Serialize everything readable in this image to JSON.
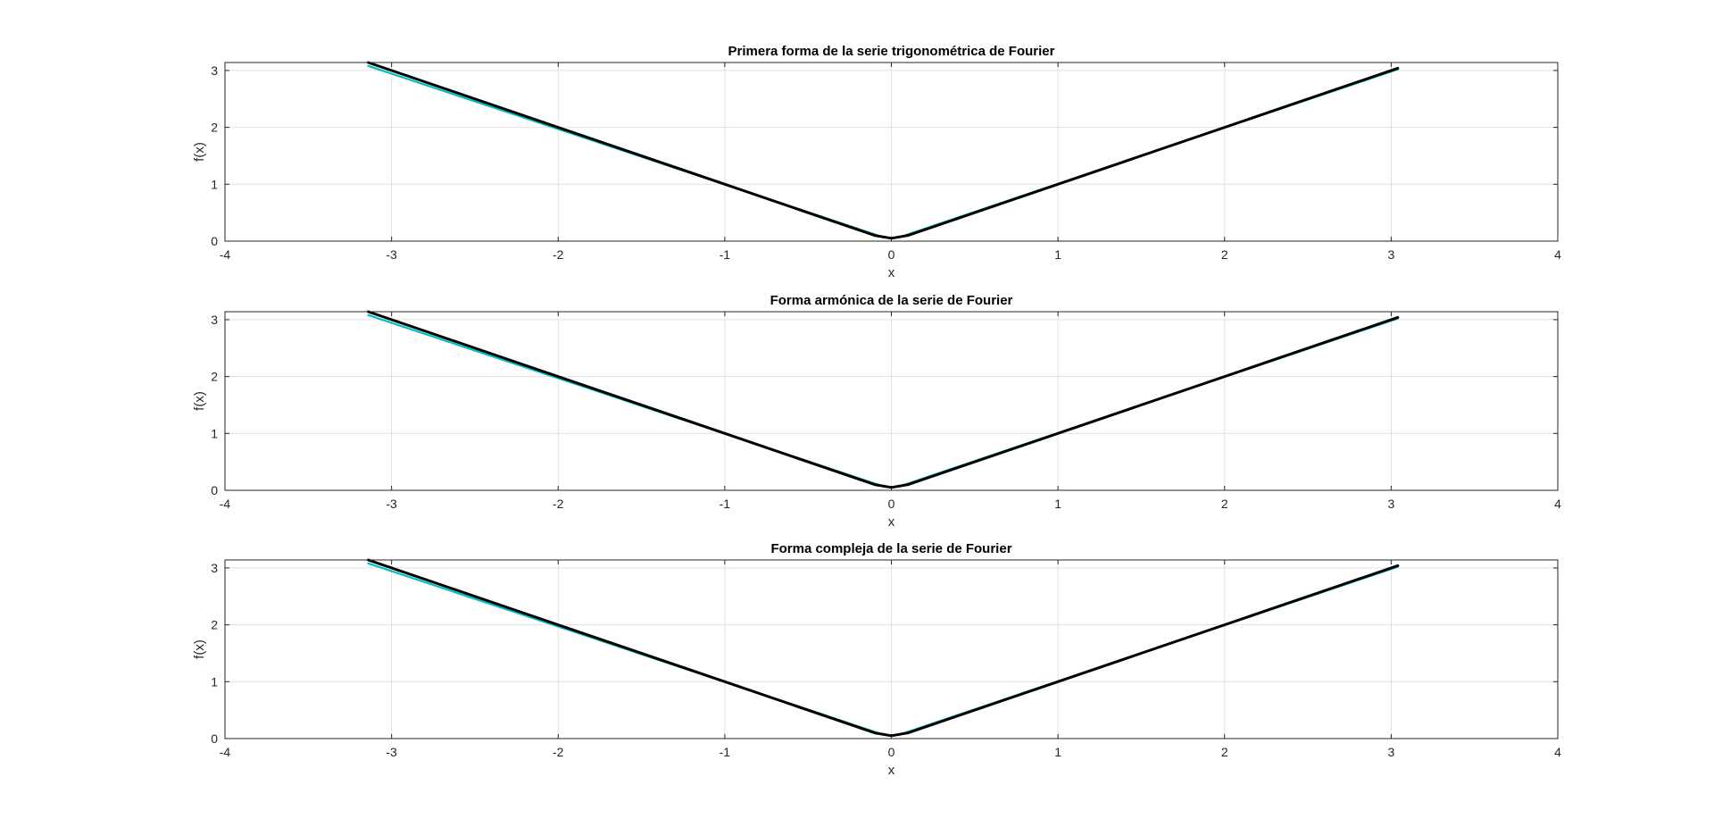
{
  "chart_data": [
    {
      "type": "line",
      "title": "Primera forma de la serie trigonométrica de Fourier",
      "xlabel": "x",
      "ylabel": "f(x)",
      "xlim": [
        -4,
        4
      ],
      "ylim": [
        0,
        3.14
      ],
      "xticks": [
        "-4",
        "-3",
        "-2",
        "-1",
        "0",
        "1",
        "2",
        "3",
        "4"
      ],
      "yticks": [
        "0",
        "1",
        "2",
        "3"
      ],
      "grid": true,
      "series": [
        {
          "color": "#00bfbf",
          "x": [
            -3.14,
            -0.05,
            0,
            0.05,
            3.04
          ],
          "y": [
            3.08,
            0.07,
            0.05,
            0.07,
            3.02
          ]
        },
        {
          "color": "#000000",
          "x": [
            -3.14,
            -0.1,
            0,
            0.1,
            3.04
          ],
          "y": [
            3.14,
            0.1,
            0.05,
            0.1,
            3.04
          ]
        }
      ]
    },
    {
      "type": "line",
      "title": "Forma armónica de la serie de Fourier",
      "xlabel": "x",
      "ylabel": "f(x)",
      "xlim": [
        -4,
        4
      ],
      "ylim": [
        0,
        3.14
      ],
      "xticks": [
        "-4",
        "-3",
        "-2",
        "-1",
        "0",
        "1",
        "2",
        "3",
        "4"
      ],
      "yticks": [
        "0",
        "1",
        "2",
        "3"
      ],
      "grid": true,
      "series": [
        {
          "color": "#00bfbf",
          "x": [
            -3.14,
            -0.05,
            0,
            0.05,
            3.04
          ],
          "y": [
            3.08,
            0.07,
            0.05,
            0.07,
            3.02
          ]
        },
        {
          "color": "#000000",
          "x": [
            -3.14,
            -0.1,
            0,
            0.1,
            3.04
          ],
          "y": [
            3.14,
            0.1,
            0.05,
            0.1,
            3.04
          ]
        }
      ]
    },
    {
      "type": "line",
      "title": "Forma compleja de la serie de Fourier",
      "xlabel": "x",
      "ylabel": "f(x)",
      "xlim": [
        -4,
        4
      ],
      "ylim": [
        0,
        3.14
      ],
      "xticks": [
        "-4",
        "-3",
        "-2",
        "-1",
        "0",
        "1",
        "2",
        "3",
        "4"
      ],
      "yticks": [
        "0",
        "1",
        "2",
        "3"
      ],
      "grid": true,
      "series": [
        {
          "color": "#00bfbf",
          "x": [
            -3.14,
            -0.05,
            0,
            0.05,
            3.04
          ],
          "y": [
            3.08,
            0.07,
            0.05,
            0.07,
            3.02
          ]
        },
        {
          "color": "#000000",
          "x": [
            -3.14,
            -0.1,
            0,
            0.1,
            3.04
          ],
          "y": [
            3.14,
            0.1,
            0.05,
            0.1,
            3.04
          ]
        }
      ]
    }
  ]
}
